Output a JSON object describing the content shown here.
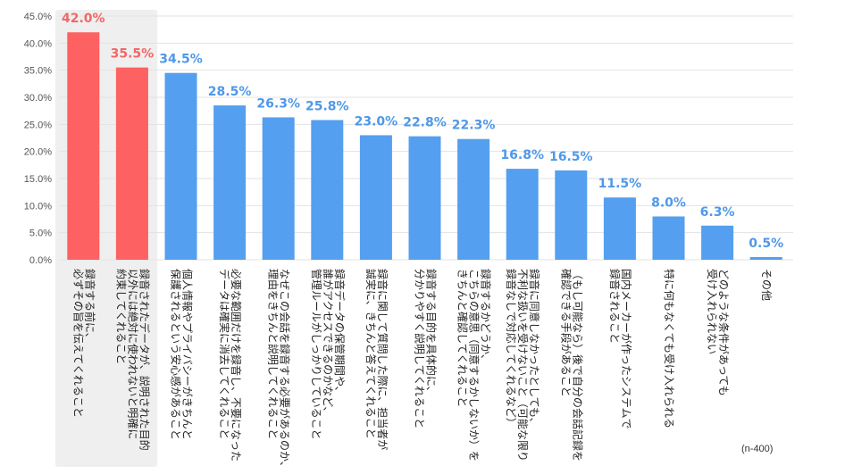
{
  "chart_data": {
    "type": "bar",
    "title": "",
    "xlabel": "",
    "ylabel": "",
    "ylim": [
      0,
      45
    ],
    "yticks": [
      "0.0%",
      "5.0%",
      "10.0%",
      "15.0%",
      "20.0%",
      "25.0%",
      "30.0%",
      "35.0%",
      "40.0%",
      "45.0%"
    ],
    "grid": true,
    "highlight_count": 2,
    "categories": [
      [
        "録音する前に、",
        "必ずその旨を伝えてくれること"
      ],
      [
        "録音されたデータが、説明された目的",
        "以外には絶対に使われないと明確に",
        "約束してくれること"
      ],
      [
        "個人情報やプライバシーがきちんと",
        "保護されるという安心感があること"
      ],
      [
        "必要な範囲だけを録音し、不要になった",
        "データは確実に消去してくれること"
      ],
      [
        "なぜこの会話を録音する必要があるのか、",
        "理由をきちんと説明してくれること"
      ],
      [
        "録音データの保管期間や、",
        "誰がアクセスできるのかなど、",
        "管理ルールがしっかりしていること"
      ],
      [
        "録音に関して質問した際に、担当者が",
        "誠実に、きちんと答えてくれること"
      ],
      [
        "録音する目的を具体的に、",
        "分かりやすく説明してくれること"
      ],
      [
        "録音するかどうか、",
        "こちらの意思（同意するかしないか）を",
        "きちんと確認してくれること"
      ],
      [
        "録音に同意しなかったとしても、",
        "不利な扱いを受けないこと（可能な限り",
        "録音なしで対応してくれるなど）"
      ],
      [
        "（もし可能なら）後で自分の会話記録を",
        "確認できる手段があること"
      ],
      [
        "国内メーカーが作ったシステムで",
        "録音されること"
      ],
      [
        "特に何もなくても受け入れられる"
      ],
      [
        "どのような条件があっても",
        "受け入れられない"
      ],
      [
        "その他"
      ]
    ],
    "values": [
      42.0,
      35.5,
      34.5,
      28.5,
      26.3,
      25.8,
      23.0,
      22.8,
      22.3,
      16.8,
      16.5,
      11.5,
      8.0,
      6.3,
      0.5
    ],
    "value_labels": [
      "42.0%",
      "35.5%",
      "34.5%",
      "28.5%",
      "26.3%",
      "25.8%",
      "23.0%",
      "22.8%",
      "22.3%",
      "16.8%",
      "16.5%",
      "11.5%",
      "8.0%",
      "6.3%",
      "0.5%"
    ],
    "colors": {
      "highlight_bar": "#fd6161",
      "highlight_label": "#f36767",
      "bar": "#549ff0",
      "label": "#4f98e8",
      "highlight_band": "#efefef",
      "grid": "#e3e3e3",
      "axis_text": "#555555",
      "category_text": "#222222"
    }
  },
  "note": "(n-400)"
}
